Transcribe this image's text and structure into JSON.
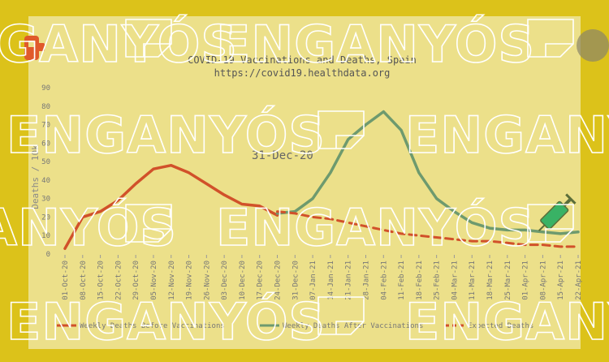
{
  "colors": {
    "frame": "#dcc21a",
    "panel": "#ece08a",
    "before": "#d1512a",
    "after": "#6e9a6e",
    "expected": "#d1512a",
    "watermark": "#ffffff"
  },
  "watermark": {
    "text": "ENGANYÓS"
  },
  "overlay_date": "31-Dec-20",
  "chart_data": {
    "type": "line",
    "title": "COVID-19 Vaccinations and Deaths, Spain",
    "subtitle": "https://covid19.healthdata.org",
    "ylabel": "Deaths / 10k",
    "xlabel": "",
    "ylim": [
      0,
      90
    ],
    "yticks": [
      0,
      10,
      20,
      30,
      40,
      50,
      60,
      70,
      80,
      90
    ],
    "x": [
      "01-Oct-20",
      "08-Oct-20",
      "15-Oct-20",
      "22-Oct-20",
      "29-Oct-20",
      "05-Nov-20",
      "12-Nov-20",
      "19-Nov-20",
      "26-Nov-20",
      "03-Dec-20",
      "10-Dec-20",
      "17-Dec-20",
      "24-Dec-20",
      "31-Dec-20",
      "07-Jan-21",
      "14-Jan-21",
      "21-Jan-21",
      "28-Jan-21",
      "04-Feb-21",
      "11-Feb-21",
      "18-Feb-21",
      "25-Feb-21",
      "04-Mar-21",
      "11-Mar-21",
      "18-Mar-21",
      "25-Mar-21",
      "01-Apr-21",
      "08-Apr-21",
      "15-Apr-21",
      "22-Apr-21"
    ],
    "series": [
      {
        "name": "Weekly Deaths Before Vaccinations",
        "style": "solid",
        "color": "#d1512a",
        "values": [
          3,
          20,
          23,
          29,
          38,
          46,
          48,
          44,
          38,
          32,
          27,
          26,
          21,
          null,
          null,
          null,
          null,
          null,
          null,
          null,
          null,
          null,
          null,
          null,
          null,
          null,
          null,
          null,
          null,
          null
        ]
      },
      {
        "name": "Weekly Deaths After Vaccinations",
        "style": "solid",
        "color": "#6e9a6e",
        "values": [
          null,
          null,
          null,
          null,
          null,
          null,
          null,
          null,
          null,
          null,
          null,
          null,
          22,
          23,
          30,
          44,
          62,
          70,
          77,
          67,
          44,
          30,
          23,
          17,
          14,
          13,
          13,
          12,
          11,
          12
        ]
      },
      {
        "name": "Expected Deaths",
        "style": "dashed",
        "color": "#d1512a",
        "values": [
          null,
          null,
          null,
          null,
          null,
          null,
          null,
          null,
          null,
          null,
          null,
          null,
          23,
          22,
          20,
          19,
          17,
          15,
          13,
          11,
          10,
          9,
          8,
          7,
          7,
          6,
          5,
          5,
          4,
          4
        ]
      }
    ],
    "grid": false,
    "legend": "bottom"
  }
}
